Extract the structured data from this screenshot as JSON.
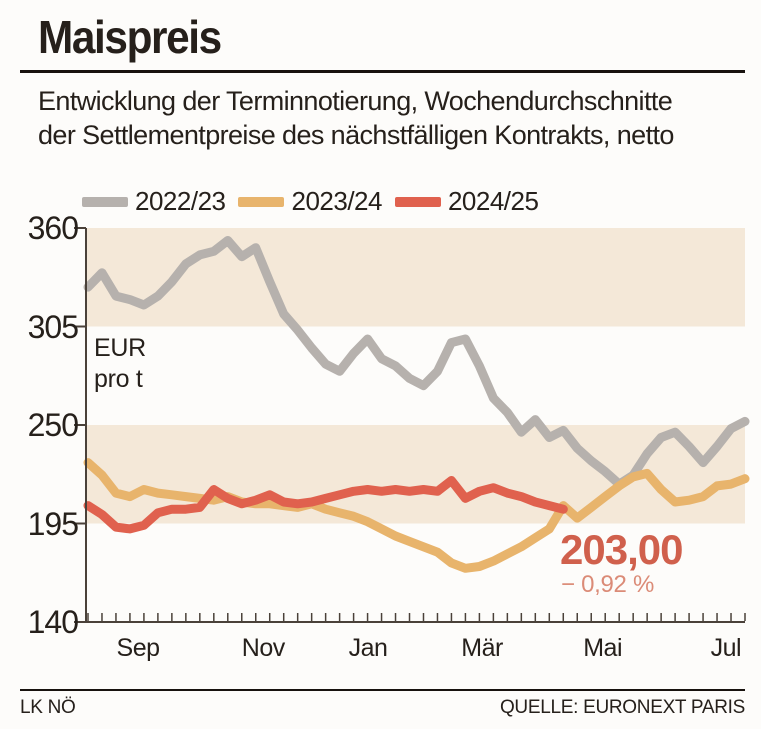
{
  "header": {
    "title": "Maispreis",
    "subtitle_line1": "Entwicklung der Terminnotierung, Wochendurchschnitte",
    "subtitle_line2": "der Settlementpreise des nächstfälligen Kontrakts, netto"
  },
  "unit": {
    "line1": "EUR",
    "line2": "pro t"
  },
  "footer": {
    "left": "LK NÖ",
    "right": "QUELLE: EURONEXT PARIS"
  },
  "colors": {
    "band": "#f4e8d8",
    "axis": "#4a4139",
    "text": "#26201b",
    "annotation_value": "#d0604c",
    "annotation_change": "#db8b77",
    "background": "#fdfcfa"
  },
  "chart_data": {
    "type": "line",
    "title": "Maispreis",
    "subtitle": "Entwicklung der Terminnotierung, Wochendurchschnitte der Settlementpreise des nächstfälligen Kontrakts, netto",
    "ylabel": "EUR pro t",
    "xlabel": "",
    "ylim": [
      140,
      360
    ],
    "yticks": [
      140,
      195,
      250,
      305,
      360
    ],
    "weeks": 48,
    "grid": false,
    "legend_position": "top",
    "bands": [
      {
        "from": 305,
        "to": 360
      },
      {
        "from": 195,
        "to": 250
      }
    ],
    "x_axis": {
      "labels": [
        "Sep",
        "Nov",
        "Jan",
        "Mär",
        "Mai",
        "Jul"
      ],
      "positions": [
        0.079,
        0.269,
        0.428,
        0.601,
        0.784,
        0.971
      ]
    },
    "series": [
      {
        "name": "2022/23",
        "color": "#b6b1ad",
        "values": [
          327,
          335,
          322,
          320,
          317,
          322,
          330,
          340,
          345,
          347,
          353,
          344,
          349,
          330,
          312,
          303,
          293,
          284,
          280,
          290,
          298,
          287,
          283,
          276,
          272,
          280,
          296,
          298,
          283,
          265,
          257,
          246,
          253,
          243,
          247,
          237,
          230,
          224,
          217,
          222,
          234,
          243,
          246,
          238,
          229,
          238,
          248,
          252
        ]
      },
      {
        "name": "2023/24",
        "color": "#e8b46c",
        "values": [
          229,
          222,
          212,
          210,
          214,
          212,
          211,
          210,
          209,
          208,
          210,
          207,
          206,
          206,
          205,
          204,
          206,
          203,
          201,
          199,
          196,
          192,
          188,
          185,
          182,
          179,
          173,
          170,
          171,
          174,
          178,
          182,
          187,
          192,
          205,
          198,
          204,
          210,
          216,
          221,
          223,
          214,
          207,
          208,
          210,
          216,
          217,
          220
        ]
      },
      {
        "name": "2024/25",
        "color": "#e0614e",
        "values": [
          205,
          200,
          193,
          192,
          194,
          201,
          203,
          203,
          204,
          214,
          209,
          206,
          208,
          211,
          207,
          206,
          207,
          209,
          211,
          213,
          214,
          213,
          214,
          213,
          214,
          213,
          219,
          209,
          213,
          215,
          212,
          210,
          207,
          205,
          203
        ]
      }
    ],
    "annotation": {
      "value": "203,00",
      "change": "− 0,92 %",
      "series": "2024/25"
    }
  }
}
